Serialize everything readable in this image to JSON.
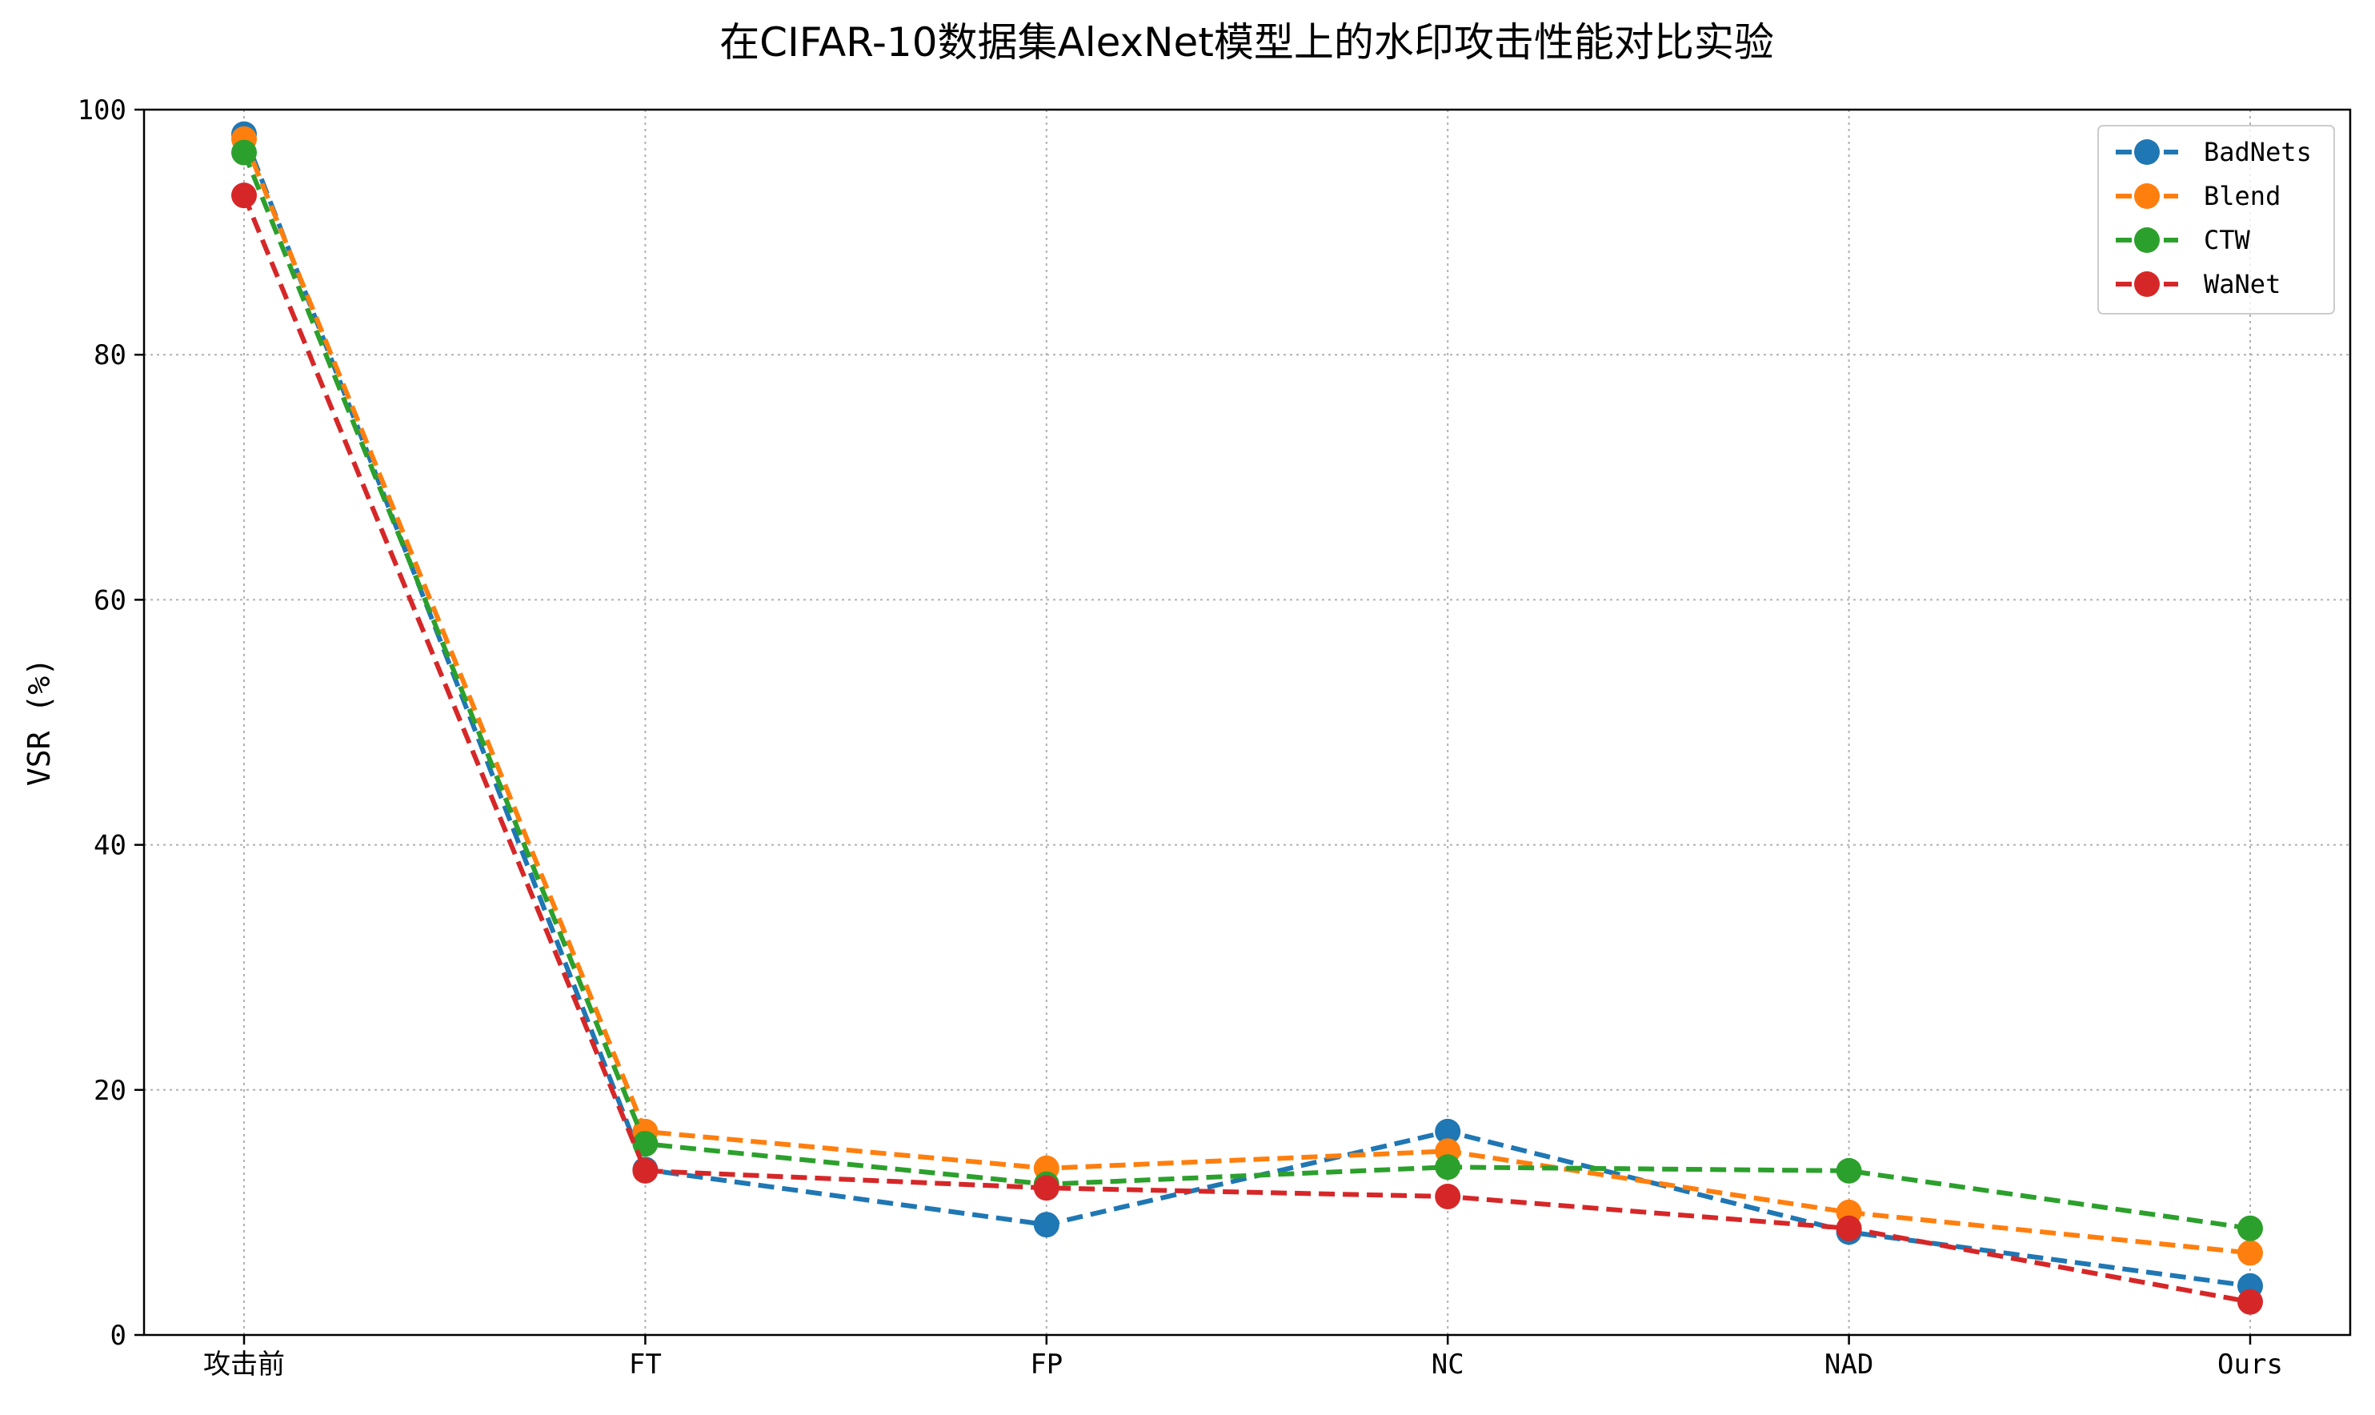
{
  "chart_data": {
    "type": "line",
    "title": "在CIFAR-10数据集AlexNet模型上的水印攻击性能对比实验",
    "xlabel": "",
    "ylabel": "VSR (%)",
    "categories": [
      "攻击前",
      "FT",
      "FP",
      "NC",
      "NAD",
      "Ours"
    ],
    "ylim": [
      0,
      100
    ],
    "yticks": [
      0,
      20,
      40,
      60,
      80,
      100
    ],
    "grid": true,
    "legend_position": "top-right",
    "series": [
      {
        "name": "BadNets",
        "color": "#1f77b4",
        "values": [
          98.0,
          13.5,
          9.0,
          16.6,
          8.4,
          4.0
        ]
      },
      {
        "name": "Blend",
        "color": "#ff7f0e",
        "values": [
          97.6,
          16.6,
          13.6,
          15.0,
          10.0,
          6.7
        ]
      },
      {
        "name": "CTW",
        "color": "#2ca02c",
        "values": [
          96.5,
          15.6,
          12.3,
          13.7,
          13.4,
          8.7
        ]
      },
      {
        "name": "WaNet",
        "color": "#d62728",
        "values": [
          93.0,
          13.4,
          12.0,
          11.3,
          8.7,
          2.7
        ]
      }
    ]
  }
}
